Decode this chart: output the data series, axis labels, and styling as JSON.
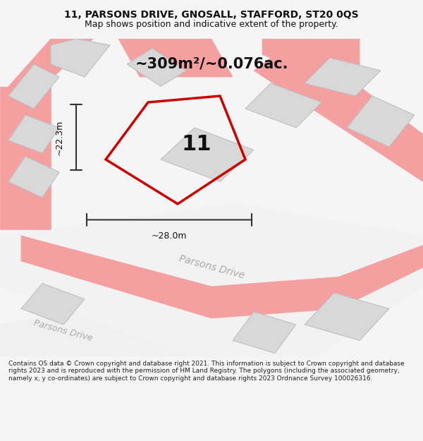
{
  "title_line1": "11, PARSONS DRIVE, GNOSALL, STAFFORD, ST20 0QS",
  "title_line2": "Map shows position and indicative extent of the property.",
  "area_label": "~309m²/~0.076ac.",
  "number_label": "11",
  "dim_width": "~28.0m",
  "dim_height": "~22.3m",
  "road_label1": "Parsons Drive",
  "road_label2": "Parsons Drive",
  "footer_text": "Contains OS data © Crown copyright and database right 2021. This information is subject to Crown copyright and database rights 2023 and is reproduced with the permission of HM Land Registry. The polygons (including the associated geometry, namely x, y co-ordinates) are subject to Crown copyright and database rights 2023 Ordnance Survey 100026316.",
  "bg_color": "#f5f5f5",
  "map_bg": "#ffffff",
  "plot_color": "#cc0000",
  "plot_fill": "none",
  "road_pink": "#f5a0a0",
  "road_outline": "#e8e8e8",
  "building_fill": "#d8d8d8",
  "building_edge": "#c0c0c0",
  "dim_line_color": "#333333",
  "text_color": "#111111",
  "footer_bg": "#ffffff"
}
